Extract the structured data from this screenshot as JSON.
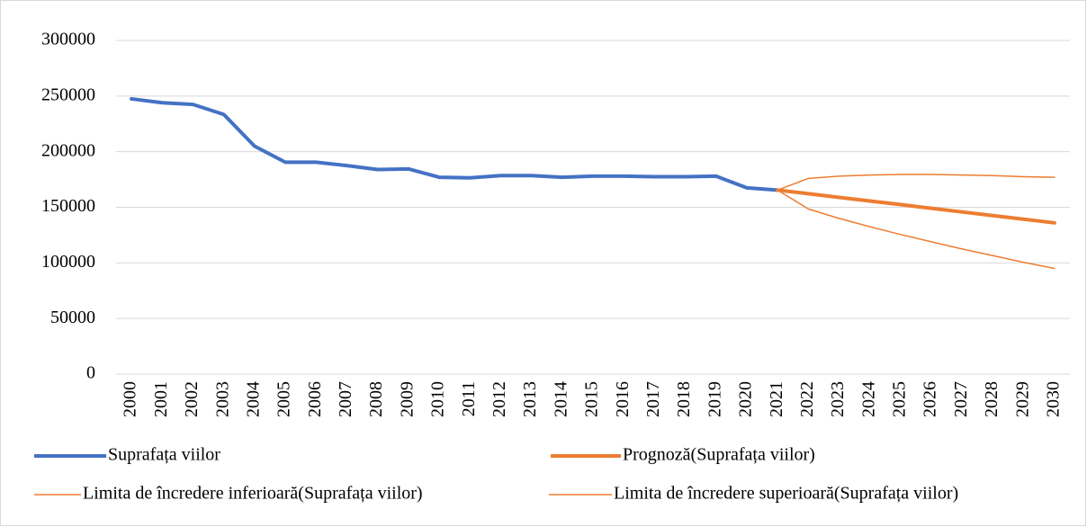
{
  "chart_data": {
    "type": "line",
    "categories": [
      "2000",
      "2001",
      "2002",
      "2003",
      "2004",
      "2005",
      "2006",
      "2007",
      "2008",
      "2009",
      "2010",
      "2011",
      "2012",
      "2013",
      "2014",
      "2015",
      "2016",
      "2017",
      "2018",
      "2019",
      "2020",
      "2021",
      "2022",
      "2023",
      "2024",
      "2025",
      "2026",
      "2027",
      "2028",
      "2029",
      "2030"
    ],
    "series": [
      {
        "name": "Suprafața viilor",
        "color": "#4472c4",
        "width": 4,
        "values": [
          247500,
          244000,
          242500,
          233500,
          205000,
          190500,
          190500,
          187500,
          184000,
          184500,
          177000,
          176500,
          178500,
          178500,
          177000,
          178000,
          178000,
          177500,
          177500,
          178000,
          167500,
          165500,
          null,
          null,
          null,
          null,
          null,
          null,
          null,
          null,
          null
        ]
      },
      {
        "name": "Prognoză(Suprafața viilor)",
        "color": "#ed7d31",
        "width": 4,
        "values": [
          null,
          null,
          null,
          null,
          null,
          null,
          null,
          null,
          null,
          null,
          null,
          null,
          null,
          null,
          null,
          null,
          null,
          null,
          null,
          null,
          null,
          165500,
          162200,
          158900,
          155700,
          152400,
          149100,
          145800,
          142500,
          139300,
          136000
        ]
      },
      {
        "name": "Limita de încredere inferioară(Suprafața viilor)",
        "color": "#ed7d31",
        "width": 1.5,
        "values": [
          null,
          null,
          null,
          null,
          null,
          null,
          null,
          null,
          null,
          null,
          null,
          null,
          null,
          null,
          null,
          null,
          null,
          null,
          null,
          null,
          null,
          165500,
          148500,
          140000,
          132500,
          125500,
          119000,
          112500,
          106500,
          100500,
          95000
        ]
      },
      {
        "name": "Limita de încredere superioară(Suprafața viilor)",
        "color": "#ed7d31",
        "width": 1.5,
        "values": [
          null,
          null,
          null,
          null,
          null,
          null,
          null,
          null,
          null,
          null,
          null,
          null,
          null,
          null,
          null,
          null,
          null,
          null,
          null,
          null,
          null,
          165500,
          176000,
          178000,
          179000,
          179500,
          179500,
          179000,
          178500,
          177500,
          177000
        ]
      }
    ],
    "ylim": [
      0,
      300000
    ],
    "yticks": [
      0,
      50000,
      100000,
      150000,
      200000,
      250000,
      300000
    ],
    "grid": true
  }
}
